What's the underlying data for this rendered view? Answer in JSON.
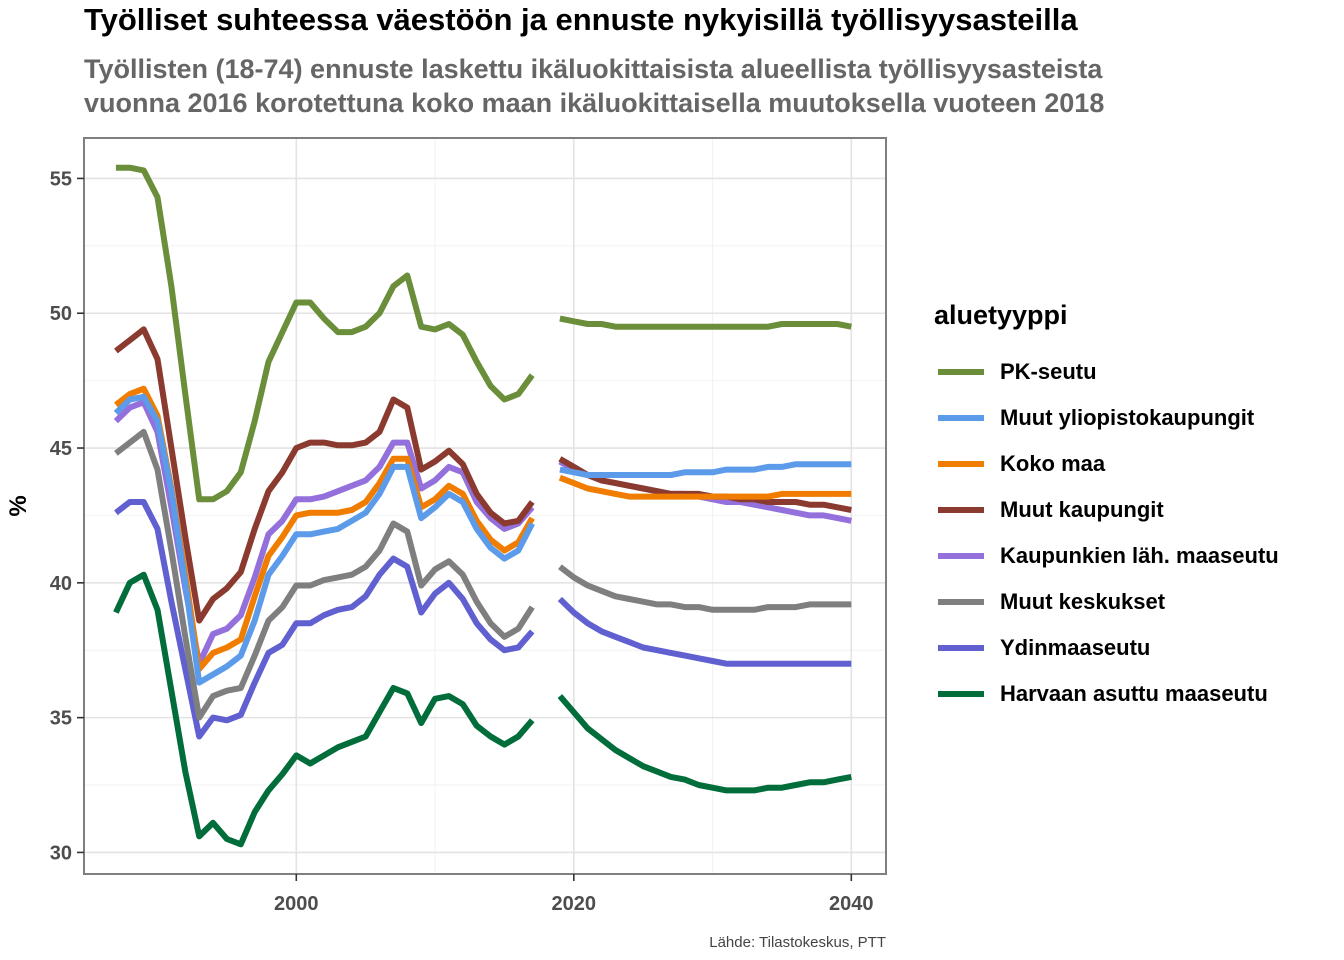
{
  "chart_data": {
    "type": "line",
    "title": "Työlliset suhteessa väestöön ja ennuste nykyisillä työllisyysasteilla",
    "subtitle_lines": [
      "Työllisten (18-74) ennuste laskettu ikäluokittaisista alueellista työllisyysasteista",
      "vuonna 2016 korotettuna koko maan ikäluokittaisella muutoksella vuoteen 2018"
    ],
    "xlabel": "",
    "ylabel": "%",
    "caption": "Lähde: Tilastokeskus, PTT",
    "xlim": [
      1984.7,
      2042.5
    ],
    "ylim": [
      29.2,
      56.5
    ],
    "x_ticks": [
      2000,
      2020,
      2040
    ],
    "y_ticks": [
      30,
      35,
      40,
      45,
      50,
      55
    ],
    "grid": true,
    "legend_title": "aluetyyppi",
    "legend_position": "right",
    "historical_years": [
      1987,
      1988,
      1989,
      1990,
      1991,
      1992,
      1993,
      1994,
      1995,
      1996,
      1997,
      1998,
      1999,
      2000,
      2001,
      2002,
      2003,
      2004,
      2005,
      2006,
      2007,
      2008,
      2009,
      2010,
      2011,
      2012,
      2013,
      2014,
      2015,
      2016,
      2017
    ],
    "forecast_years": [
      2019,
      2020,
      2021,
      2022,
      2023,
      2024,
      2025,
      2026,
      2027,
      2028,
      2029,
      2030,
      2031,
      2032,
      2033,
      2034,
      2035,
      2036,
      2037,
      2038,
      2039,
      2040
    ],
    "series": [
      {
        "name": "PK-seutu",
        "color": "#6b8e3a",
        "historical": [
          55.4,
          55.4,
          55.3,
          54.3,
          51.0,
          47.0,
          43.1,
          43.1,
          43.4,
          44.1,
          46.0,
          48.2,
          49.3,
          50.4,
          50.4,
          49.8,
          49.3,
          49.3,
          49.5,
          50.0,
          51.0,
          51.4,
          49.5,
          49.4,
          49.6,
          49.2,
          48.2,
          47.3,
          46.8,
          47.0,
          47.7
        ],
        "forecast": [
          49.8,
          49.7,
          49.6,
          49.6,
          49.5,
          49.5,
          49.5,
          49.5,
          49.5,
          49.5,
          49.5,
          49.5,
          49.5,
          49.5,
          49.5,
          49.5,
          49.6,
          49.6,
          49.6,
          49.6,
          49.6,
          49.5
        ]
      },
      {
        "name": "Muut yliopistokaupungit",
        "color": "#5b9bea",
        "historical": [
          46.3,
          46.8,
          46.9,
          46.0,
          43.4,
          40.0,
          36.3,
          36.6,
          36.9,
          37.3,
          38.6,
          40.3,
          41.0,
          41.8,
          41.8,
          41.9,
          42.0,
          42.3,
          42.6,
          43.3,
          44.3,
          44.3,
          42.4,
          42.8,
          43.3,
          43.0,
          42.0,
          41.3,
          40.9,
          41.2,
          42.2
        ],
        "forecast": [
          44.2,
          44.1,
          44.0,
          44.0,
          44.0,
          44.0,
          44.0,
          44.0,
          44.0,
          44.1,
          44.1,
          44.1,
          44.2,
          44.2,
          44.2,
          44.3,
          44.3,
          44.4,
          44.4,
          44.4,
          44.4,
          44.4
        ]
      },
      {
        "name": "Koko maa",
        "color": "#f07c00",
        "historical": [
          46.6,
          47.0,
          47.2,
          46.2,
          43.5,
          40.3,
          36.8,
          37.4,
          37.6,
          37.9,
          39.5,
          41.0,
          41.7,
          42.5,
          42.6,
          42.6,
          42.6,
          42.7,
          43.0,
          43.7,
          44.6,
          44.6,
          42.8,
          43.1,
          43.6,
          43.3,
          42.3,
          41.6,
          41.2,
          41.5,
          42.4
        ],
        "forecast": [
          43.9,
          43.7,
          43.5,
          43.4,
          43.3,
          43.2,
          43.2,
          43.2,
          43.2,
          43.2,
          43.2,
          43.2,
          43.2,
          43.2,
          43.2,
          43.2,
          43.3,
          43.3,
          43.3,
          43.3,
          43.3,
          43.3
        ]
      },
      {
        "name": "Muut kaupungit",
        "color": "#8b3a2f",
        "historical": [
          48.6,
          49.0,
          49.4,
          48.3,
          45.0,
          41.7,
          38.6,
          39.4,
          39.8,
          40.4,
          42.0,
          43.4,
          44.1,
          45.0,
          45.2,
          45.2,
          45.1,
          45.1,
          45.2,
          45.6,
          46.8,
          46.5,
          44.2,
          44.5,
          44.9,
          44.4,
          43.3,
          42.6,
          42.2,
          42.3,
          43.0
        ],
        "forecast": [
          44.6,
          44.3,
          44.0,
          43.8,
          43.7,
          43.6,
          43.5,
          43.4,
          43.3,
          43.3,
          43.3,
          43.2,
          43.2,
          43.1,
          43.1,
          43.0,
          43.0,
          43.0,
          42.9,
          42.9,
          42.8,
          42.7
        ]
      },
      {
        "name": "Kaupunkien läh. maaseutu",
        "color": "#9370db",
        "historical": [
          46.0,
          46.5,
          46.7,
          45.6,
          42.8,
          39.8,
          37.0,
          38.1,
          38.3,
          38.8,
          40.2,
          41.8,
          42.3,
          43.1,
          43.1,
          43.2,
          43.4,
          43.6,
          43.8,
          44.3,
          45.2,
          45.2,
          43.5,
          43.8,
          44.3,
          44.1,
          43.0,
          42.4,
          42.0,
          42.2,
          42.8
        ],
        "forecast": [
          44.5,
          44.2,
          44.0,
          43.8,
          43.7,
          43.6,
          43.5,
          43.4,
          43.3,
          43.3,
          43.2,
          43.1,
          43.0,
          43.0,
          42.9,
          42.8,
          42.7,
          42.6,
          42.5,
          42.5,
          42.4,
          42.3
        ]
      },
      {
        "name": "Muut keskukset",
        "color": "#7f7f7f",
        "historical": [
          44.8,
          45.2,
          45.6,
          44.2,
          41.2,
          38.0,
          35.0,
          35.8,
          36.0,
          36.1,
          37.3,
          38.6,
          39.1,
          39.9,
          39.9,
          40.1,
          40.2,
          40.3,
          40.6,
          41.2,
          42.2,
          41.9,
          39.9,
          40.5,
          40.8,
          40.3,
          39.3,
          38.5,
          38.0,
          38.3,
          39.1
        ],
        "forecast": [
          40.6,
          40.2,
          39.9,
          39.7,
          39.5,
          39.4,
          39.3,
          39.2,
          39.2,
          39.1,
          39.1,
          39.0,
          39.0,
          39.0,
          39.0,
          39.1,
          39.1,
          39.1,
          39.2,
          39.2,
          39.2,
          39.2
        ]
      },
      {
        "name": "Ydinmaaseutu",
        "color": "#6060d0",
        "historical": [
          42.6,
          43.0,
          43.0,
          42.0,
          39.3,
          36.8,
          34.3,
          35.0,
          34.9,
          35.1,
          36.3,
          37.4,
          37.7,
          38.5,
          38.5,
          38.8,
          39.0,
          39.1,
          39.5,
          40.3,
          40.9,
          40.6,
          38.9,
          39.6,
          40.0,
          39.4,
          38.5,
          37.9,
          37.5,
          37.6,
          38.2
        ],
        "forecast": [
          39.4,
          38.9,
          38.5,
          38.2,
          38.0,
          37.8,
          37.6,
          37.5,
          37.4,
          37.3,
          37.2,
          37.1,
          37.0,
          37.0,
          37.0,
          37.0,
          37.0,
          37.0,
          37.0,
          37.0,
          37.0,
          37.0
        ]
      },
      {
        "name": "Harvaan asuttu maaseutu",
        "color": "#006d3b",
        "historical": [
          38.9,
          40.0,
          40.3,
          39.0,
          36.0,
          33.0,
          30.6,
          31.1,
          30.5,
          30.3,
          31.5,
          32.3,
          32.9,
          33.6,
          33.3,
          33.6,
          33.9,
          34.1,
          34.3,
          35.2,
          36.1,
          35.9,
          34.8,
          35.7,
          35.8,
          35.5,
          34.7,
          34.3,
          34.0,
          34.3,
          34.9
        ],
        "forecast": [
          35.8,
          35.2,
          34.6,
          34.2,
          33.8,
          33.5,
          33.2,
          33.0,
          32.8,
          32.7,
          32.5,
          32.4,
          32.3,
          32.3,
          32.3,
          32.4,
          32.4,
          32.5,
          32.6,
          32.6,
          32.7,
          32.8
        ]
      }
    ]
  }
}
